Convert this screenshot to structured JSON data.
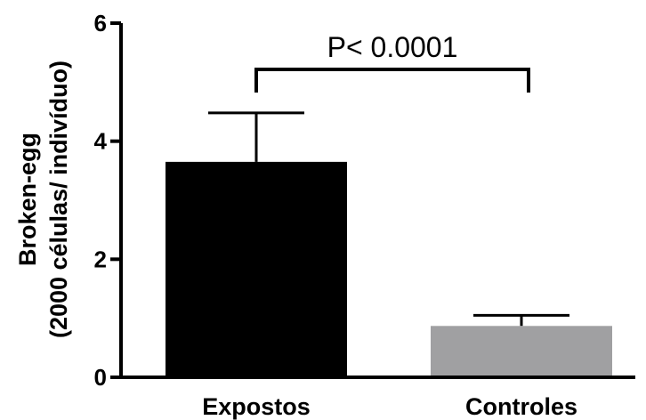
{
  "chart_data": {
    "type": "bar",
    "categories": [
      "Expostos",
      "Controles"
    ],
    "values": [
      3.65,
      0.87
    ],
    "errors": [
      0.83,
      0.18
    ],
    "colors": [
      "#000000",
      "#a0a0a2"
    ],
    "ylabel_lines": [
      "Broken-egg",
      "(2000 células/ indivíduo)"
    ],
    "ylim": [
      0,
      6
    ],
    "yticks": [
      "0",
      "2",
      "4",
      "6"
    ],
    "annotation": "P< 0.0001",
    "grid": false
  }
}
